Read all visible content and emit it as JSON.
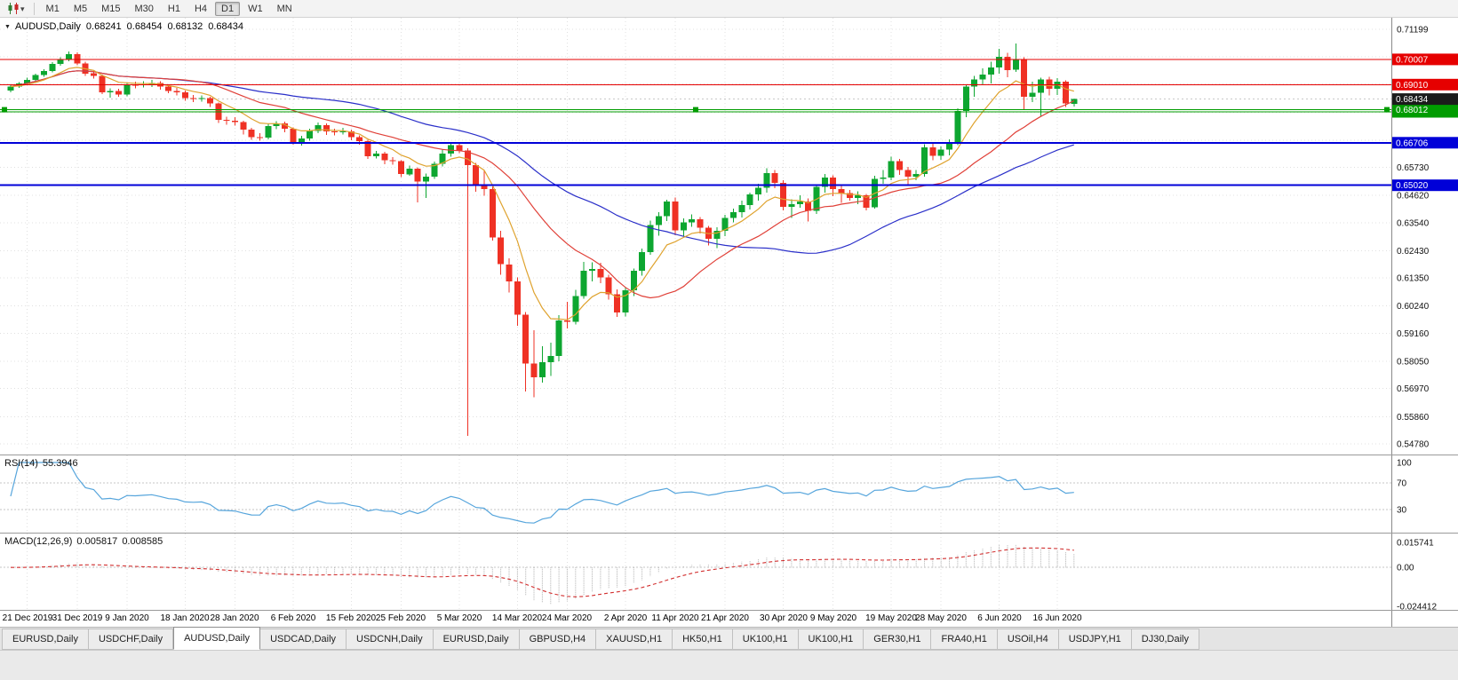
{
  "toolbar": {
    "timeframes": [
      "M1",
      "M5",
      "M15",
      "M30",
      "H1",
      "H4",
      "D1",
      "W1",
      "MN"
    ],
    "active_timeframe": "D1"
  },
  "icons": {
    "chart_type": "candlestick-chart",
    "dropdown_caret": "▾",
    "chart_menu_arrow": "▼"
  },
  "chart": {
    "title": {
      "symbol_period": "AUDUSD,Daily",
      "open": "0.68241",
      "high": "0.68454",
      "low": "0.68132",
      "close": "0.68434"
    }
  },
  "chart_data": {
    "type": "candlestick",
    "symbol": "AUDUSD",
    "period": "Daily",
    "colors": {
      "bull": "#0DA630",
      "bear": "#EF3124",
      "ma_fast": "#DFA32F",
      "ma_mid": "#E04038",
      "ma_slow": "#2A2FC9",
      "rsi": "#56A5DC",
      "macd_hist": "#B2B2B2",
      "macd_signal": "#D23030",
      "current_price_badge": "#1B1B1B"
    },
    "price_scale": {
      "anchor_top": 0.71199,
      "anchor_bottom": 0.5478,
      "grid_prices": [
        0.71199,
        0.7011,
        0.6903,
        0.6792,
        0.6681,
        0.6573,
        0.6462,
        0.6354,
        0.6243,
        0.6135,
        0.6024,
        0.5916,
        0.5805,
        0.5697,
        0.5586,
        0.5478
      ],
      "visible_labels": [
        "0.71199",
        "0.65730",
        "0.64620",
        "0.63540",
        "0.62430",
        "0.61350",
        "0.60240",
        "0.59160",
        "0.58050",
        "0.56970",
        "0.55860",
        "0.54780"
      ]
    },
    "current_price": 0.68434,
    "hlines": [
      {
        "price": 0.70007,
        "color": "#E60000",
        "width": 1,
        "badge": true
      },
      {
        "price": 0.6901,
        "color": "#E60000",
        "width": 1,
        "badge": true
      },
      {
        "price": 0.6793,
        "color": "#009C00",
        "width": 1,
        "badge": true
      },
      {
        "price": 0.68012,
        "color": "#009C00",
        "width": 1,
        "badge": true,
        "handles": true
      },
      {
        "price": 0.66706,
        "color": "#0000D8",
        "width": 2,
        "badge": true
      },
      {
        "price": 0.6502,
        "color": "#0000D8",
        "width": 2,
        "badge": true
      }
    ],
    "moving_averages": [
      {
        "name": "slow",
        "period": 40,
        "method": "sma",
        "color": "#2A2FC9"
      },
      {
        "name": "mid",
        "period": 20,
        "method": "sma",
        "color": "#E04038"
      },
      {
        "name": "fast",
        "period": 8,
        "method": "ema",
        "color": "#DFA32F"
      }
    ],
    "indicators": {
      "rsi": {
        "period": 14,
        "levels": [
          70,
          30
        ]
      },
      "macd": {
        "fast": 12,
        "slow": 26,
        "signal": 9
      }
    },
    "date_labels": [
      {
        "text": "21 Dec 2019",
        "i": 2
      },
      {
        "text": "31 Dec 2019",
        "i": 8
      },
      {
        "text": "9 Jan 2020",
        "i": 14
      },
      {
        "text": "18 Jan 2020",
        "i": 21
      },
      {
        "text": "28 Jan 2020",
        "i": 27
      },
      {
        "text": "6 Feb 2020",
        "i": 34
      },
      {
        "text": "15 Feb 2020",
        "i": 41
      },
      {
        "text": "25 Feb 2020",
        "i": 47
      },
      {
        "text": "5 Mar 2020",
        "i": 54
      },
      {
        "text": "14 Mar 2020",
        "i": 61
      },
      {
        "text": "24 Mar 2020",
        "i": 67
      },
      {
        "text": "2 Apr 2020",
        "i": 74
      },
      {
        "text": "11 Apr 2020",
        "i": 80
      },
      {
        "text": "21 Apr 2020",
        "i": 86
      },
      {
        "text": "30 Apr 2020",
        "i": 93
      },
      {
        "text": "9 May 2020",
        "i": 99
      },
      {
        "text": "19 May 2020",
        "i": 106
      },
      {
        "text": "28 May 2020",
        "i": 112
      },
      {
        "text": "6 Jun 2020",
        "i": 119
      },
      {
        "text": "16 Jun 2020",
        "i": 126
      }
    ],
    "candles": [
      [
        0.6878,
        0.6901,
        0.687,
        0.6893
      ],
      [
        0.6893,
        0.6911,
        0.6887,
        0.6905
      ],
      [
        0.6905,
        0.6928,
        0.6899,
        0.692
      ],
      [
        0.692,
        0.6944,
        0.6913,
        0.6938
      ],
      [
        0.6938,
        0.6961,
        0.6931,
        0.6955
      ],
      [
        0.6955,
        0.6989,
        0.6949,
        0.6982
      ],
      [
        0.6982,
        0.701,
        0.6975,
        0.7
      ],
      [
        0.7,
        0.7032,
        0.6994,
        0.7021
      ],
      [
        0.7021,
        0.7028,
        0.6977,
        0.6985
      ],
      [
        0.6985,
        0.6991,
        0.6936,
        0.6945
      ],
      [
        0.6945,
        0.6956,
        0.6924,
        0.6935
      ],
      [
        0.6935,
        0.6941,
        0.6863,
        0.687
      ],
      [
        0.687,
        0.6886,
        0.685,
        0.6875
      ],
      [
        0.6875,
        0.6884,
        0.6853,
        0.6862
      ],
      [
        0.6862,
        0.6908,
        0.6855,
        0.69
      ],
      [
        0.69,
        0.6912,
        0.6886,
        0.6898
      ],
      [
        0.6898,
        0.6915,
        0.6889,
        0.6902
      ],
      [
        0.6902,
        0.6919,
        0.6892,
        0.6907
      ],
      [
        0.6907,
        0.6914,
        0.6881,
        0.6893
      ],
      [
        0.6893,
        0.69,
        0.6866,
        0.6876
      ],
      [
        0.6876,
        0.6887,
        0.6858,
        0.6871
      ],
      [
        0.6871,
        0.6877,
        0.6836,
        0.6848
      ],
      [
        0.6848,
        0.686,
        0.6832,
        0.6845
      ],
      [
        0.6845,
        0.6858,
        0.6834,
        0.6847
      ],
      [
        0.6847,
        0.6853,
        0.6812,
        0.6826
      ],
      [
        0.6826,
        0.683,
        0.6749,
        0.6761
      ],
      [
        0.6761,
        0.6774,
        0.6742,
        0.6758
      ],
      [
        0.6758,
        0.6771,
        0.6738,
        0.6752
      ],
      [
        0.6752,
        0.6758,
        0.6703,
        0.6722
      ],
      [
        0.6722,
        0.6729,
        0.6682,
        0.6692
      ],
      [
        0.6692,
        0.6708,
        0.6678,
        0.6691
      ],
      [
        0.6691,
        0.6746,
        0.6684,
        0.6737
      ],
      [
        0.6737,
        0.6756,
        0.6725,
        0.6748
      ],
      [
        0.6748,
        0.6754,
        0.6712,
        0.6727
      ],
      [
        0.6727,
        0.6732,
        0.6662,
        0.6672
      ],
      [
        0.6672,
        0.6698,
        0.666,
        0.6687
      ],
      [
        0.6687,
        0.6726,
        0.6679,
        0.6717
      ],
      [
        0.6717,
        0.675,
        0.6709,
        0.674
      ],
      [
        0.674,
        0.6747,
        0.6702,
        0.6716
      ],
      [
        0.6716,
        0.6727,
        0.67,
        0.6712
      ],
      [
        0.6712,
        0.6729,
        0.6703,
        0.6716
      ],
      [
        0.6716,
        0.6722,
        0.668,
        0.6692
      ],
      [
        0.6692,
        0.67,
        0.6663,
        0.6677
      ],
      [
        0.6677,
        0.6682,
        0.6606,
        0.6617
      ],
      [
        0.6617,
        0.6639,
        0.6609,
        0.6627
      ],
      [
        0.6627,
        0.6634,
        0.6585,
        0.6601
      ],
      [
        0.6601,
        0.6613,
        0.6583,
        0.6598
      ],
      [
        0.6598,
        0.6602,
        0.6534,
        0.6546
      ],
      [
        0.6546,
        0.658,
        0.6539,
        0.6568
      ],
      [
        0.6568,
        0.6574,
        0.6434,
        0.6517
      ],
      [
        0.6517,
        0.6549,
        0.6452,
        0.6537
      ],
      [
        0.6537,
        0.6596,
        0.6528,
        0.6588
      ],
      [
        0.6588,
        0.6646,
        0.6576,
        0.6627
      ],
      [
        0.6627,
        0.667,
        0.6616,
        0.6661
      ],
      [
        0.6661,
        0.6672,
        0.6629,
        0.664
      ],
      [
        0.664,
        0.6648,
        0.551,
        0.6582
      ],
      [
        0.6582,
        0.659,
        0.6477,
        0.6503
      ],
      [
        0.6503,
        0.656,
        0.6461,
        0.6487
      ],
      [
        0.6487,
        0.6497,
        0.6284,
        0.6296
      ],
      [
        0.6296,
        0.6322,
        0.6147,
        0.6189
      ],
      [
        0.6189,
        0.6212,
        0.6078,
        0.6121
      ],
      [
        0.6121,
        0.6137,
        0.5945,
        0.599
      ],
      [
        0.599,
        0.6,
        0.5685,
        0.5797
      ],
      [
        0.5797,
        0.5928,
        0.5663,
        0.5742
      ],
      [
        0.5742,
        0.5865,
        0.5721,
        0.5801
      ],
      [
        0.5801,
        0.5879,
        0.5747,
        0.5826
      ],
      [
        0.5826,
        0.5988,
        0.5805,
        0.5967
      ],
      [
        0.5967,
        0.6041,
        0.5935,
        0.5961
      ],
      [
        0.5961,
        0.6088,
        0.5951,
        0.6063
      ],
      [
        0.6063,
        0.6199,
        0.6052,
        0.6163
      ],
      [
        0.6163,
        0.6197,
        0.6122,
        0.6171
      ],
      [
        0.6171,
        0.6196,
        0.6115,
        0.6138
      ],
      [
        0.6138,
        0.6147,
        0.6049,
        0.6071
      ],
      [
        0.6071,
        0.609,
        0.5981,
        0.5999
      ],
      [
        0.5999,
        0.6099,
        0.5983,
        0.6087
      ],
      [
        0.6087,
        0.6172,
        0.6063,
        0.6163
      ],
      [
        0.6163,
        0.6251,
        0.6144,
        0.6237
      ],
      [
        0.6237,
        0.6362,
        0.6226,
        0.6345
      ],
      [
        0.6345,
        0.6396,
        0.6302,
        0.638
      ],
      [
        0.638,
        0.6445,
        0.6361,
        0.6438
      ],
      [
        0.6438,
        0.6454,
        0.6305,
        0.6323
      ],
      [
        0.6323,
        0.6371,
        0.6299,
        0.6355
      ],
      [
        0.6355,
        0.6387,
        0.6338,
        0.6367
      ],
      [
        0.6367,
        0.6377,
        0.6312,
        0.6334
      ],
      [
        0.6334,
        0.6341,
        0.6264,
        0.629
      ],
      [
        0.629,
        0.6335,
        0.6254,
        0.6322
      ],
      [
        0.6322,
        0.6385,
        0.6301,
        0.6372
      ],
      [
        0.6372,
        0.641,
        0.6355,
        0.6396
      ],
      [
        0.6396,
        0.6441,
        0.6374,
        0.6423
      ],
      [
        0.6423,
        0.6473,
        0.6406,
        0.6466
      ],
      [
        0.6466,
        0.6509,
        0.6442,
        0.6492
      ],
      [
        0.6492,
        0.657,
        0.6473,
        0.6551
      ],
      [
        0.6551,
        0.6562,
        0.6491,
        0.6512
      ],
      [
        0.6512,
        0.6522,
        0.6402,
        0.6417
      ],
      [
        0.6417,
        0.6447,
        0.6373,
        0.6428
      ],
      [
        0.6428,
        0.6463,
        0.6414,
        0.6437
      ],
      [
        0.6437,
        0.6451,
        0.6359,
        0.6401
      ],
      [
        0.6401,
        0.6506,
        0.6389,
        0.6496
      ],
      [
        0.6496,
        0.6546,
        0.6473,
        0.6532
      ],
      [
        0.6532,
        0.6542,
        0.6459,
        0.6487
      ],
      [
        0.6487,
        0.6503,
        0.6432,
        0.6471
      ],
      [
        0.6471,
        0.6484,
        0.6441,
        0.6452
      ],
      [
        0.6452,
        0.6479,
        0.6428,
        0.6462
      ],
      [
        0.6462,
        0.6468,
        0.6402,
        0.6414
      ],
      [
        0.6414,
        0.6539,
        0.641,
        0.6527
      ],
      [
        0.6527,
        0.6562,
        0.6508,
        0.6532
      ],
      [
        0.6532,
        0.6616,
        0.6522,
        0.6598
      ],
      [
        0.6598,
        0.6607,
        0.6543,
        0.6562
      ],
      [
        0.6562,
        0.6575,
        0.6506,
        0.6537
      ],
      [
        0.6537,
        0.6562,
        0.6522,
        0.6546
      ],
      [
        0.6546,
        0.6664,
        0.6536,
        0.6653
      ],
      [
        0.6653,
        0.6667,
        0.6602,
        0.6619
      ],
      [
        0.6619,
        0.6656,
        0.6603,
        0.6643
      ],
      [
        0.6643,
        0.6684,
        0.6621,
        0.6667
      ],
      [
        0.6667,
        0.6807,
        0.6661,
        0.6797
      ],
      [
        0.6797,
        0.6899,
        0.6772,
        0.6893
      ],
      [
        0.6893,
        0.6936,
        0.6852,
        0.6921
      ],
      [
        0.6921,
        0.6965,
        0.6901,
        0.6941
      ],
      [
        0.6941,
        0.6992,
        0.6905,
        0.6968
      ],
      [
        0.6968,
        0.7043,
        0.6944,
        0.7011
      ],
      [
        0.7011,
        0.7027,
        0.693,
        0.6959
      ],
      [
        0.6959,
        0.7063,
        0.6952,
        0.7002
      ],
      [
        0.7002,
        0.701,
        0.68,
        0.6852
      ],
      [
        0.6852,
        0.6913,
        0.6832,
        0.6868
      ],
      [
        0.6868,
        0.6929,
        0.6776,
        0.6921
      ],
      [
        0.6921,
        0.6931,
        0.6858,
        0.6885
      ],
      [
        0.6885,
        0.6927,
        0.686,
        0.6913
      ],
      [
        0.6913,
        0.6918,
        0.6812,
        0.6826
      ],
      [
        0.68241,
        0.68454,
        0.68132,
        0.68434
      ]
    ]
  },
  "rsi_panel": {
    "label": "RSI(14)",
    "value": "55.3946",
    "axis_labels": [
      "100",
      "70",
      "30"
    ]
  },
  "macd_panel": {
    "label": "MACD(12,26,9)",
    "value_main": "0.005817",
    "value_signal": "0.008585",
    "axis_labels": [
      "0.015741",
      "0.00",
      "-0.024412"
    ]
  },
  "tabs": {
    "items": [
      "EURUSD,Daily",
      "USDCHF,Daily",
      "AUDUSD,Daily",
      "USDCAD,Daily",
      "USDCNH,Daily",
      "EURUSD,Daily",
      "GBPUSD,H4",
      "XAUUSD,H1",
      "HK50,H1",
      "UK100,H1",
      "UK100,H1",
      "GER30,H1",
      "FRA40,H1",
      "USOil,H4",
      "USDJPY,H1",
      "DJ30,Daily"
    ],
    "active_index": 2
  }
}
